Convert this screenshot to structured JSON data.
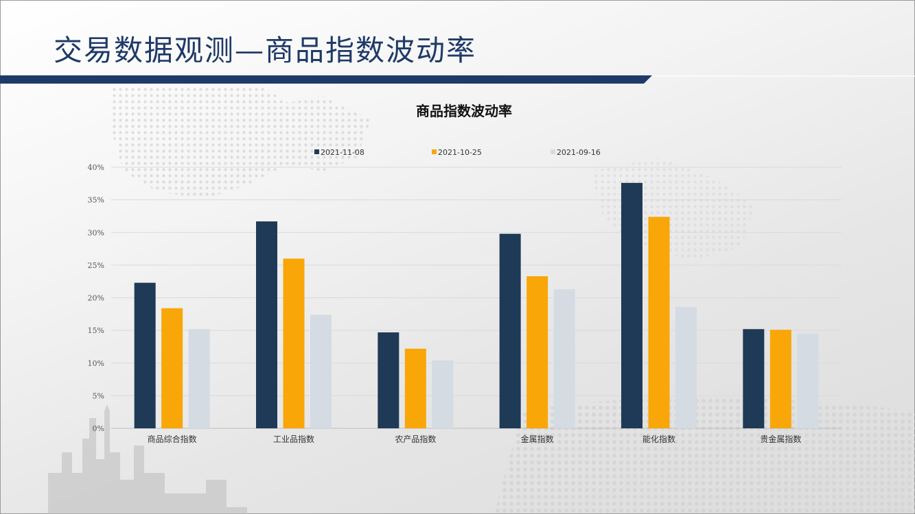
{
  "page": {
    "title": "交易数据观测—商品指数波动率"
  },
  "colors": {
    "title_blue": "#1f3a68",
    "bar_navy": "#1f3a56",
    "bar_orange": "#f9a608",
    "bar_light": "#d5dbe3"
  },
  "chart_data": {
    "type": "bar",
    "title": "商品指数波动率",
    "categories": [
      "商品综合指数",
      "工业品指数",
      "农产品指数",
      "金属指数",
      "能化指数",
      "贵金属指数"
    ],
    "series": [
      {
        "name": "2021-11-08",
        "color": "#1f3a56",
        "values": [
          22.3,
          31.7,
          14.7,
          29.8,
          37.6,
          15.2
        ]
      },
      {
        "name": "2021-10-25",
        "color": "#f9a608",
        "values": [
          18.4,
          26.0,
          12.2,
          23.3,
          32.4,
          15.1
        ]
      },
      {
        "name": "2021-09-16",
        "color": "#d5dbe3",
        "values": [
          15.2,
          17.4,
          10.4,
          21.3,
          18.6,
          14.5
        ]
      }
    ],
    "ylim": [
      0,
      40
    ],
    "yticks": [
      0,
      5,
      10,
      15,
      20,
      25,
      30,
      35,
      40
    ],
    "ytick_labels": [
      "0%",
      "5%",
      "10%",
      "15%",
      "20%",
      "25%",
      "30%",
      "35%",
      "40%"
    ],
    "legend_position": "top-center",
    "grid": true
  }
}
